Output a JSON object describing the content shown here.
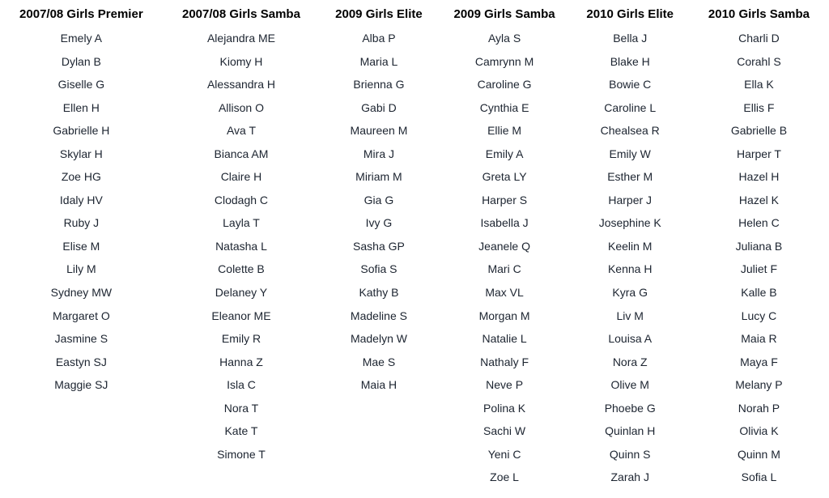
{
  "table": {
    "columns": [
      {
        "header": "2007/08 Girls Premier",
        "names": [
          "Emely A",
          "Dylan B",
          "Giselle G",
          "Ellen H",
          "Gabrielle H",
          "Skylar H",
          "Zoe HG",
          "Idaly HV",
          "Ruby J",
          "Elise M",
          "Lily M",
          "Sydney MW",
          "Margaret O",
          "Jasmine S",
          "Eastyn SJ",
          "Maggie SJ"
        ]
      },
      {
        "header": "2007/08 Girls Samba",
        "names": [
          "Alejandra ME",
          "Kiomy H",
          "Alessandra H",
          "Allison O",
          "Ava T",
          "Bianca AM",
          "Claire H",
          "Clodagh C",
          "Layla T",
          "Natasha L",
          "Colette B",
          "Delaney Y",
          "Eleanor ME",
          "Emily R",
          "Hanna Z",
          "Isla C",
          "Nora T",
          "Kate T",
          "Simone T"
        ]
      },
      {
        "header": "2009 Girls Elite",
        "names": [
          "Alba P",
          "Maria L",
          "Brienna G",
          "Gabi D",
          "Maureen M",
          "Mira J",
          "Miriam M",
          "Gia G",
          "Ivy G",
          "Sasha GP",
          "Sofia S",
          "Kathy B",
          "Madeline S",
          "Madelyn W",
          "Mae S",
          "Maia H"
        ]
      },
      {
        "header": "2009 Girls Samba",
        "names": [
          "Ayla S",
          "Camrynn M",
          "Caroline G",
          "Cynthia E",
          "Ellie M",
          "Emily A",
          "Greta LY",
          "Harper S",
          "Isabella J",
          "Jeanele Q",
          "Mari C",
          "Max VL",
          "Morgan M",
          "Natalie L",
          "Nathaly F",
          "Neve P",
          "Polina K",
          "Sachi W",
          "Yeni C",
          "Zoe L"
        ]
      },
      {
        "header": "2010 Girls Elite",
        "names": [
          "Bella J",
          "Blake H",
          "Bowie C",
          "Caroline L",
          "Chealsea R",
          "Emily W",
          "Esther M",
          "Harper J",
          "Josephine K",
          "Keelin M",
          "Kenna H",
          "Kyra G",
          "Liv M",
          "Louisa A",
          "Nora Z",
          "Olive M",
          "Phoebe G",
          "Quinlan H",
          "Quinn S",
          "Zarah J"
        ]
      },
      {
        "header": "2010 Girls Samba",
        "names": [
          "Charli D",
          "Corahl S",
          "Ella K",
          "Ellis F",
          "Gabrielle B",
          "Harper T",
          "Hazel H",
          "Hazel K",
          "Helen C",
          "Juliana B",
          "Juliet F",
          "Kalle B",
          "Lucy C",
          "Maia R",
          "Maya F",
          "Melany P",
          "Norah P",
          "Olivia K",
          "Quinn M",
          "Sofia L"
        ]
      }
    ]
  }
}
